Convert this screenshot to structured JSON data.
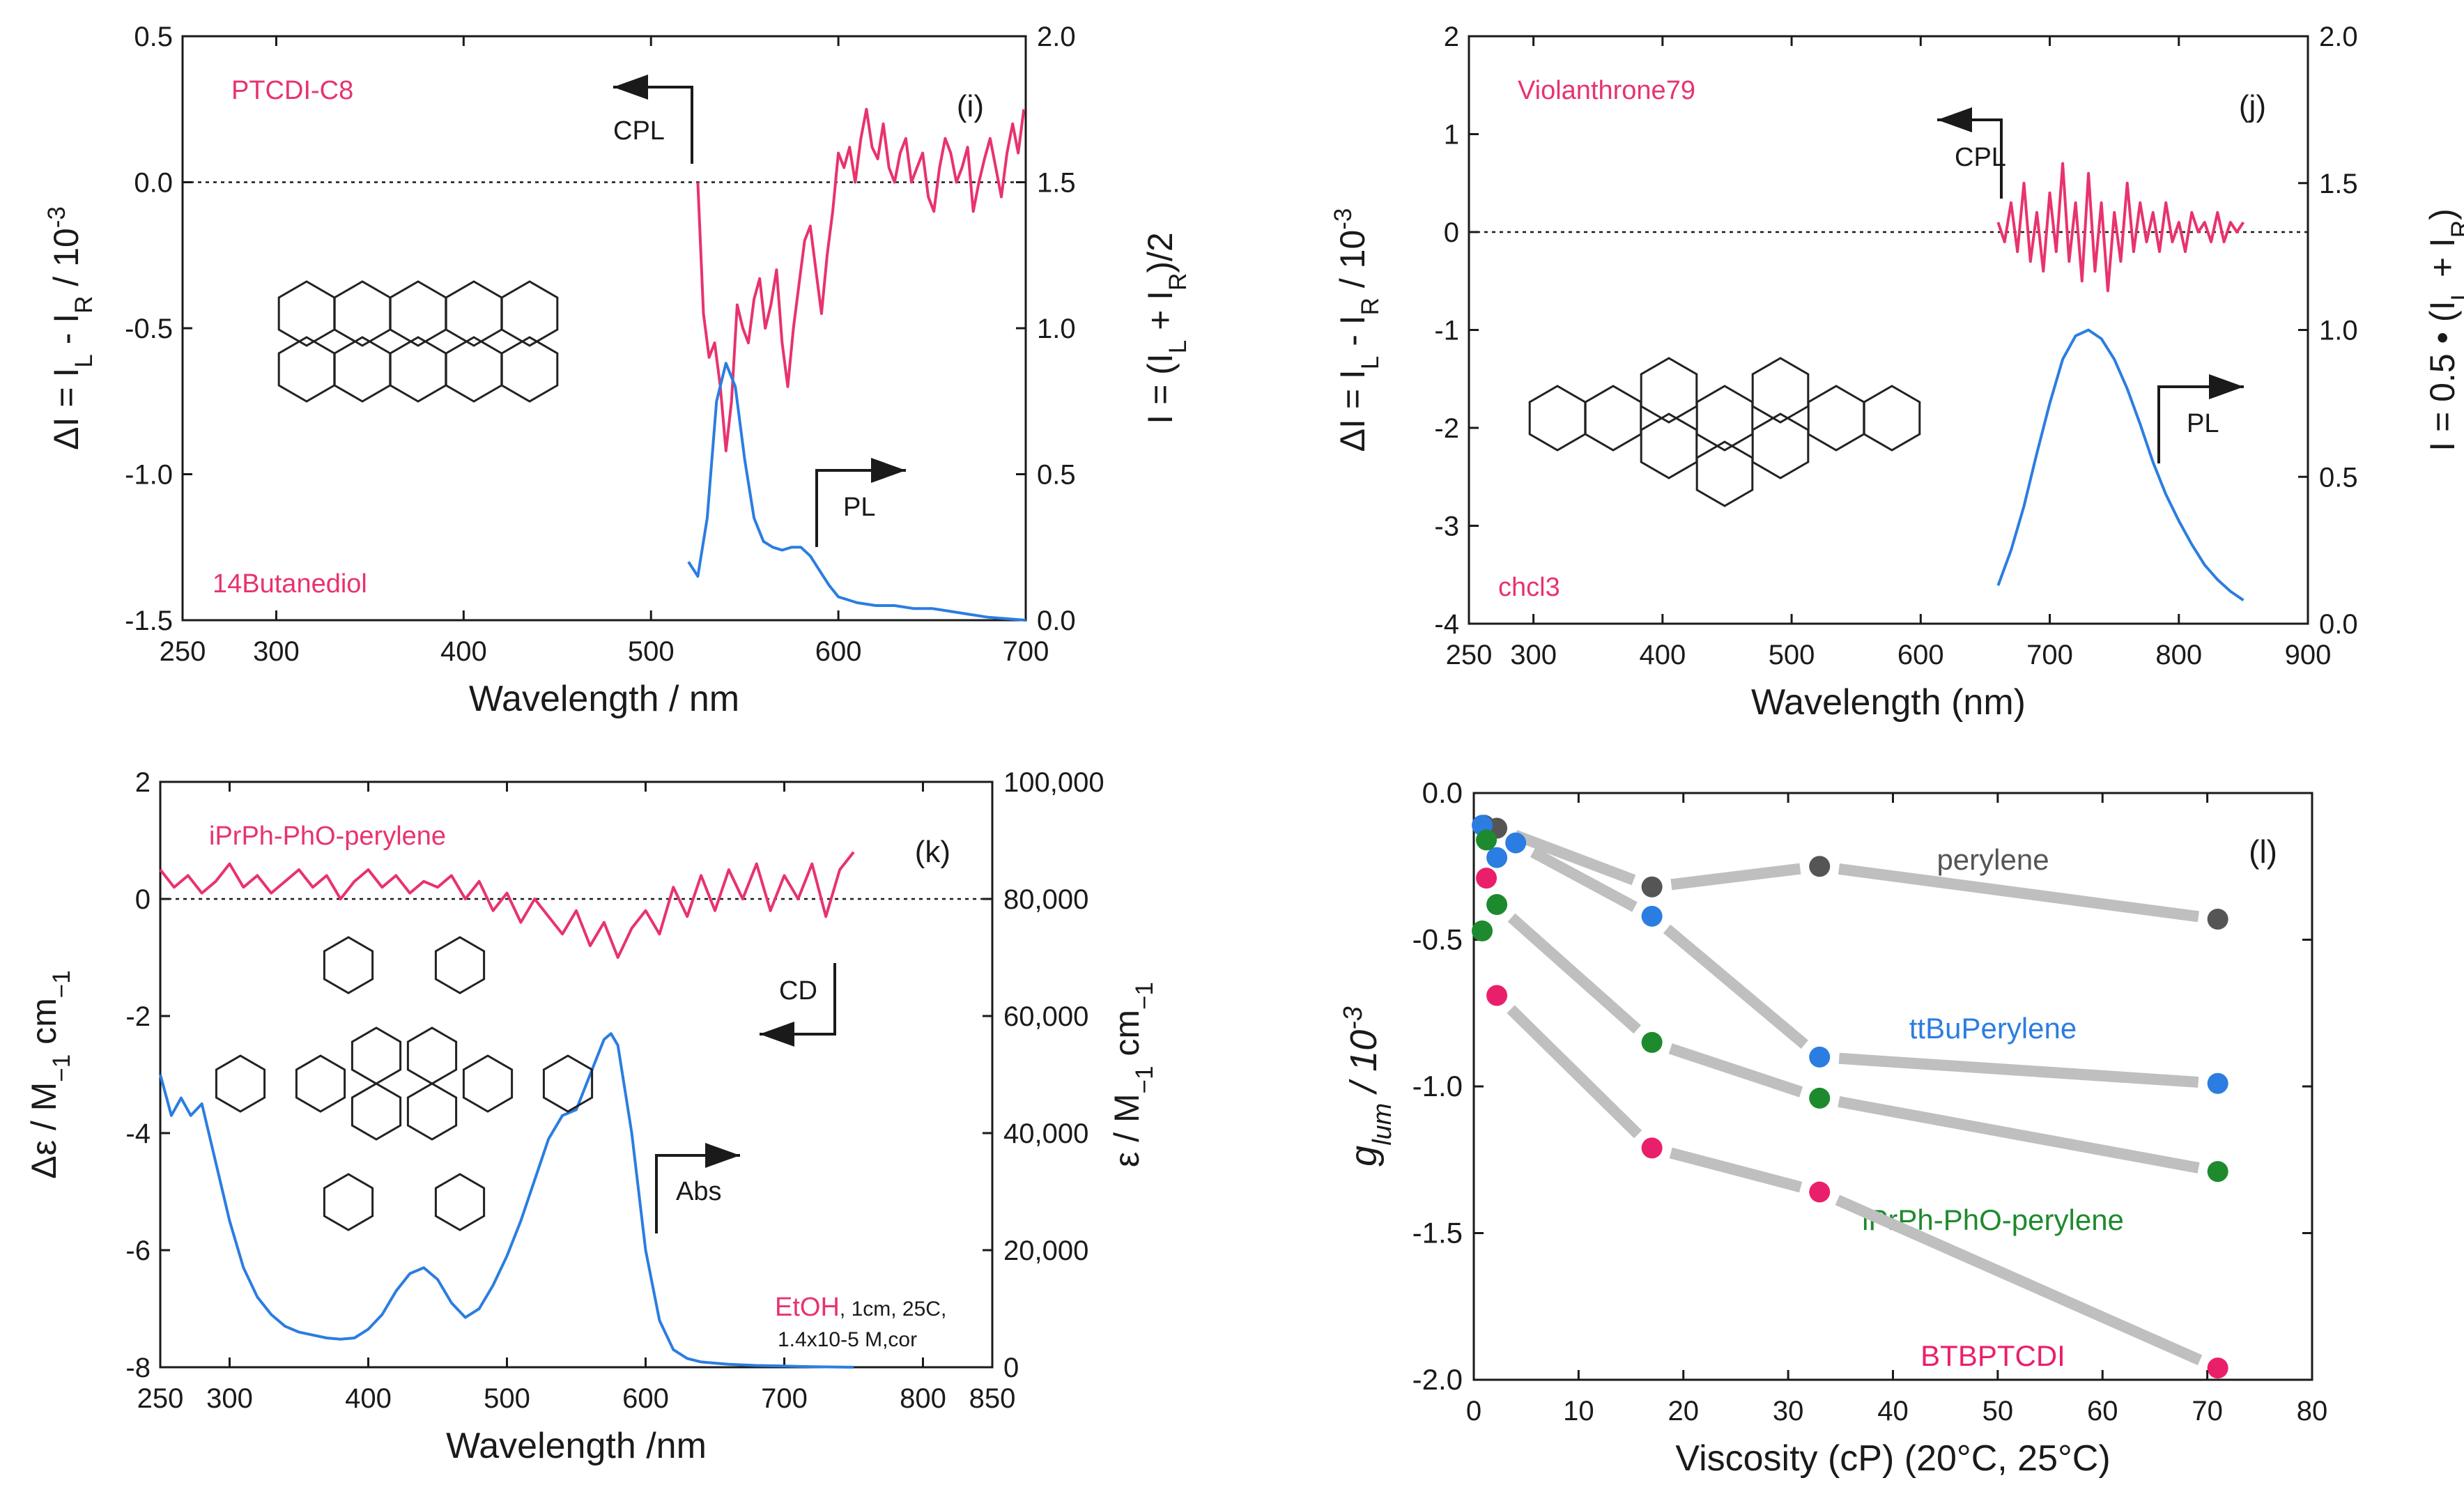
{
  "colors": {
    "cpl": "#e8336d",
    "pl": "#2b7de1",
    "axis": "#1a1a1a",
    "connector": "#bfbfbf",
    "perylene": "#555555",
    "ttbu": "#2b7de1",
    "iprph": "#1e8a2e",
    "btb": "#ea1f6c"
  },
  "chart_data": [
    {
      "id": "i",
      "type": "line",
      "panel_label": "(i)",
      "sample": "PTCDI-C8",
      "solvent": "14Butanediol",
      "xlabel": "Wavelength / nm",
      "ylabel_left_parts": [
        "ΔI = I",
        "L",
        " - I",
        "R",
        " / 10",
        "-3"
      ],
      "ylabel_right_parts": [
        "I = (I",
        "L",
        " + I",
        "R",
        ")/2"
      ],
      "xlim": [
        250,
        700
      ],
      "xticks": [
        "250",
        "300",
        "400",
        "500",
        "600",
        "700"
      ],
      "ylim_left": [
        -1.5,
        0.5
      ],
      "yticks_left": [
        "-1.5",
        "-1.0",
        "-0.5",
        "0.0",
        "0.5"
      ],
      "ylim_right": [
        0.0,
        2.0
      ],
      "yticks_right": [
        "0.0",
        "0.5",
        "1.0",
        "1.5",
        "2.0"
      ],
      "cpl_arrow_label": "CPL",
      "pl_arrow_label": "PL",
      "series": [
        {
          "name": "CPL",
          "axis": "left",
          "x": [
            525,
            528,
            531,
            534,
            537,
            540,
            543,
            546,
            549,
            552,
            555,
            558,
            561,
            564,
            567,
            570,
            573,
            576,
            579,
            582,
            585,
            588,
            591,
            594,
            597,
            600,
            603,
            606,
            609,
            612,
            615,
            618,
            621,
            624,
            627,
            630,
            633,
            636,
            639,
            642,
            645,
            648,
            651,
            654,
            657,
            660,
            663,
            666,
            669,
            672,
            675,
            678,
            681,
            684,
            687,
            690,
            693,
            696,
            699
          ],
          "y": [
            0.0,
            -0.45,
            -0.6,
            -0.55,
            -0.7,
            -0.92,
            -0.75,
            -0.42,
            -0.5,
            -0.55,
            -0.4,
            -0.33,
            -0.5,
            -0.42,
            -0.3,
            -0.55,
            -0.7,
            -0.5,
            -0.35,
            -0.2,
            -0.15,
            -0.3,
            -0.45,
            -0.25,
            -0.1,
            0.1,
            0.05,
            0.12,
            0.0,
            0.15,
            0.25,
            0.12,
            0.08,
            0.2,
            0.05,
            0.0,
            0.1,
            0.15,
            0.0,
            0.05,
            0.1,
            -0.05,
            -0.1,
            0.05,
            0.15,
            0.1,
            0.0,
            0.05,
            0.12,
            -0.1,
            0.0,
            0.08,
            0.15,
            0.05,
            -0.05,
            0.1,
            0.2,
            0.1,
            0.25
          ]
        },
        {
          "name": "PL",
          "axis": "right",
          "x": [
            520,
            525,
            530,
            535,
            540,
            545,
            550,
            555,
            560,
            565,
            570,
            575,
            580,
            585,
            590,
            595,
            600,
            610,
            620,
            630,
            640,
            650,
            660,
            670,
            680,
            690,
            700
          ],
          "y": [
            0.2,
            0.15,
            0.35,
            0.75,
            0.88,
            0.8,
            0.55,
            0.35,
            0.27,
            0.25,
            0.24,
            0.25,
            0.25,
            0.22,
            0.17,
            0.12,
            0.08,
            0.06,
            0.05,
            0.05,
            0.04,
            0.04,
            0.03,
            0.02,
            0.01,
            0.005,
            0.0
          ]
        }
      ]
    },
    {
      "id": "j",
      "type": "line",
      "panel_label": "(j)",
      "sample": "Violanthrone79",
      "solvent": "chcl3",
      "xlabel": "Wavelength (nm)",
      "ylabel_left_parts": [
        "ΔI = I",
        "L",
        " - I",
        "R",
        " / 10",
        "-3"
      ],
      "ylabel_right_parts": [
        "I = 0.5 • (I",
        "L",
        " + I",
        "R",
        ")"
      ],
      "xlim": [
        250,
        900
      ],
      "xticks": [
        "250",
        "300",
        "400",
        "500",
        "600",
        "700",
        "800",
        "900"
      ],
      "ylim_left": [
        -4,
        2
      ],
      "yticks_left": [
        "-4",
        "-3",
        "-2",
        "-1",
        "0",
        "1",
        "2"
      ],
      "ylim_right": [
        0.0,
        2.0
      ],
      "yticks_right": [
        "0.0",
        "0.5",
        "1.0",
        "1.5",
        "2.0"
      ],
      "cpl_arrow_label": "CPL",
      "pl_arrow_label": "PL",
      "series": [
        {
          "name": "CPL",
          "axis": "left",
          "x": [
            660,
            665,
            670,
            675,
            680,
            685,
            690,
            695,
            700,
            705,
            710,
            715,
            720,
            725,
            730,
            735,
            740,
            745,
            750,
            755,
            760,
            765,
            770,
            775,
            780,
            785,
            790,
            795,
            800,
            805,
            810,
            815,
            820,
            825,
            830,
            835,
            840,
            845,
            850
          ],
          "y": [
            0.1,
            -0.1,
            0.3,
            -0.2,
            0.5,
            -0.3,
            0.2,
            -0.4,
            0.4,
            -0.2,
            0.7,
            -0.3,
            0.3,
            -0.5,
            0.6,
            -0.4,
            0.3,
            -0.6,
            0.2,
            -0.3,
            0.5,
            -0.2,
            0.3,
            -0.1,
            0.2,
            -0.2,
            0.3,
            -0.1,
            0.1,
            -0.2,
            0.2,
            0.0,
            0.1,
            -0.1,
            0.2,
            -0.1,
            0.1,
            0.0,
            0.1
          ]
        },
        {
          "name": "PL",
          "axis": "right",
          "x": [
            660,
            670,
            680,
            690,
            700,
            710,
            720,
            730,
            740,
            750,
            760,
            770,
            780,
            790,
            800,
            810,
            820,
            830,
            840,
            850
          ],
          "y": [
            0.13,
            0.25,
            0.4,
            0.58,
            0.75,
            0.9,
            0.98,
            1.0,
            0.97,
            0.9,
            0.8,
            0.68,
            0.55,
            0.44,
            0.35,
            0.27,
            0.2,
            0.15,
            0.11,
            0.08
          ]
        }
      ]
    },
    {
      "id": "k",
      "type": "line",
      "panel_label": "(k)",
      "sample": "iPrPh-PhO-perylene",
      "solvent": "EtOH",
      "conditions": ", 1cm, 25C,",
      "conditions_line2": "1.4x10-5 M,cor",
      "xlabel": "Wavelength /nm",
      "ylabel_left_parts": [
        "Δε / M",
        "−1",
        " cm",
        "−1"
      ],
      "ylabel_right_parts": [
        "ε / M",
        "−1",
        " cm",
        "−1"
      ],
      "xlim": [
        250,
        850
      ],
      "xticks": [
        "250",
        "300",
        "400",
        "500",
        "600",
        "700",
        "800",
        "850"
      ],
      "ylim_left": [
        -8,
        2
      ],
      "yticks_left": [
        "-8",
        "-6",
        "-4",
        "-2",
        "0",
        "2"
      ],
      "ylim_right": [
        0,
        100000
      ],
      "yticks_right": [
        "0",
        "20,000",
        "40,000",
        "60,000",
        "80,000",
        "100,000"
      ],
      "cd_arrow_label": "CD",
      "abs_arrow_label": "Abs",
      "series": [
        {
          "name": "CD",
          "axis": "left",
          "x": [
            250,
            260,
            270,
            280,
            290,
            300,
            310,
            320,
            330,
            340,
            350,
            360,
            370,
            380,
            390,
            400,
            410,
            420,
            430,
            440,
            450,
            460,
            470,
            480,
            490,
            500,
            510,
            520,
            530,
            540,
            550,
            560,
            570,
            580,
            590,
            600,
            610,
            620,
            630,
            640,
            650,
            660,
            670,
            680,
            690,
            700,
            710,
            720,
            730,
            740,
            750
          ],
          "y": [
            0.5,
            0.2,
            0.4,
            0.1,
            0.3,
            0.6,
            0.2,
            0.4,
            0.1,
            0.3,
            0.5,
            0.2,
            0.4,
            0.0,
            0.3,
            0.5,
            0.2,
            0.4,
            0.1,
            0.3,
            0.2,
            0.4,
            0.0,
            0.3,
            -0.2,
            0.1,
            -0.4,
            0.0,
            -0.3,
            -0.6,
            -0.2,
            -0.8,
            -0.4,
            -1.0,
            -0.5,
            -0.2,
            -0.6,
            0.2,
            -0.3,
            0.4,
            -0.2,
            0.5,
            0.0,
            0.6,
            -0.2,
            0.4,
            0.0,
            0.6,
            -0.3,
            0.5,
            0.8
          ]
        },
        {
          "name": "Abs",
          "axis": "right",
          "x": [
            250,
            258,
            265,
            272,
            280,
            290,
            300,
            310,
            320,
            330,
            340,
            350,
            360,
            370,
            380,
            390,
            400,
            410,
            420,
            430,
            440,
            450,
            460,
            470,
            480,
            490,
            500,
            510,
            520,
            530,
            540,
            550,
            560,
            570,
            575,
            580,
            590,
            600,
            610,
            620,
            630,
            640,
            650,
            660,
            680,
            700,
            720,
            750
          ],
          "y": [
            50000,
            43000,
            46000,
            43000,
            45000,
            35000,
            25000,
            17000,
            12000,
            9000,
            7000,
            6000,
            5500,
            5000,
            4800,
            5000,
            6500,
            9000,
            13000,
            16000,
            17000,
            15000,
            11000,
            8500,
            10000,
            14000,
            19000,
            25000,
            32000,
            39000,
            43000,
            44000,
            50000,
            56000,
            57000,
            55000,
            40000,
            20000,
            8000,
            3000,
            1500,
            900,
            700,
            500,
            300,
            200,
            100,
            0
          ]
        }
      ]
    },
    {
      "id": "l",
      "type": "scatter",
      "panel_label": "(l)",
      "xlabel": "Viscosity (cP) (20°C, 25°C)",
      "ylabel_parts": [
        "g",
        "lum",
        "  / 10",
        "-3"
      ],
      "xlim": [
        0,
        80
      ],
      "xticks": [
        "0",
        "10",
        "20",
        "30",
        "40",
        "50",
        "60",
        "70",
        "80"
      ],
      "ylim": [
        -2.0,
        0.0
      ],
      "yticks": [
        "-2.0",
        "-1.5",
        "-1.0",
        "-0.5",
        "0.0"
      ],
      "series": [
        {
          "name": "perylene",
          "x": [
            1.0,
            2.2,
            17,
            33,
            71
          ],
          "y": [
            -0.11,
            -0.12,
            -0.32,
            -0.25,
            -0.43
          ]
        },
        {
          "name": "ttBuPerylene",
          "x": [
            0.8,
            2.2,
            4.0,
            17,
            33,
            71
          ],
          "y": [
            -0.11,
            -0.22,
            -0.17,
            -0.42,
            -0.9,
            -0.99
          ]
        },
        {
          "name": "iPrPh-PhO-perylene",
          "x": [
            1.2,
            2.2,
            0.8,
            17,
            33,
            71
          ],
          "y": [
            -0.16,
            -0.38,
            -0.47,
            -0.85,
            -1.04,
            -1.29
          ]
        },
        {
          "name": "BTBPTCDI",
          "x": [
            1.2,
            2.2,
            17,
            33,
            71
          ],
          "y": [
            -0.29,
            -0.69,
            -1.21,
            -1.36,
            -1.96
          ]
        }
      ]
    }
  ]
}
